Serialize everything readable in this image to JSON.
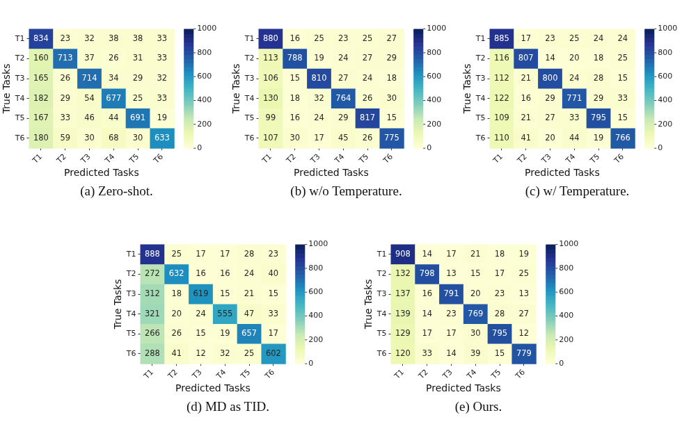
{
  "chart_data": [
    {
      "type": "heatmap",
      "categories": [
        "T1",
        "T2",
        "T3",
        "T4",
        "T5",
        "T6"
      ],
      "y_categories": [
        "T1",
        "T2",
        "T3",
        "T4",
        "T5",
        "T6"
      ],
      "xlabel": "Predicted Tasks",
      "ylabel": "True Tasks",
      "clim": [
        0,
        1000
      ],
      "cticks": [
        0,
        200,
        400,
        600,
        800,
        1000
      ],
      "data_labels": true,
      "annotations": [
        "(a) Zero-shot."
      ],
      "cells": [
        [
          834,
          23,
          32,
          38,
          38,
          33
        ],
        [
          160,
          713,
          37,
          26,
          31,
          33
        ],
        [
          165,
          26,
          714,
          34,
          29,
          32
        ],
        [
          182,
          29,
          54,
          677,
          25,
          33
        ],
        [
          167,
          33,
          46,
          44,
          691,
          19
        ],
        [
          180,
          59,
          30,
          68,
          30,
          633
        ]
      ]
    },
    {
      "type": "heatmap",
      "categories": [
        "T1",
        "T2",
        "T3",
        "T4",
        "T5",
        "T6"
      ],
      "y_categories": [
        "T1",
        "T2",
        "T3",
        "T4",
        "T5",
        "T6"
      ],
      "xlabel": "Predicted Tasks",
      "ylabel": "True Tasks",
      "clim": [
        0,
        1000
      ],
      "cticks": [
        0,
        200,
        400,
        600,
        800,
        1000
      ],
      "data_labels": true,
      "annotations": [
        "(b) w/o Temperature."
      ],
      "cells": [
        [
          880,
          16,
          25,
          23,
          25,
          27
        ],
        [
          113,
          788,
          19,
          24,
          27,
          29
        ],
        [
          106,
          15,
          810,
          27,
          24,
          18
        ],
        [
          130,
          18,
          32,
          764,
          26,
          30
        ],
        [
          99,
          16,
          24,
          29,
          817,
          15
        ],
        [
          107,
          30,
          17,
          45,
          26,
          775
        ]
      ]
    },
    {
      "type": "heatmap",
      "categories": [
        "T1",
        "T2",
        "T3",
        "T4",
        "T5",
        "T6"
      ],
      "y_categories": [
        "T1",
        "T2",
        "T3",
        "T4",
        "T5",
        "T6"
      ],
      "xlabel": "Predicted Tasks",
      "ylabel": "True Tasks",
      "clim": [
        0,
        1000
      ],
      "cticks": [
        0,
        200,
        400,
        600,
        800,
        1000
      ],
      "data_labels": true,
      "annotations": [
        "(c) w/ Temperature."
      ],
      "cells": [
        [
          885,
          17,
          23,
          25,
          24,
          24
        ],
        [
          116,
          807,
          14,
          20,
          18,
          25
        ],
        [
          112,
          21,
          800,
          24,
          28,
          15
        ],
        [
          122,
          16,
          29,
          771,
          29,
          33
        ],
        [
          109,
          21,
          27,
          33,
          795,
          15
        ],
        [
          110,
          41,
          20,
          44,
          19,
          766
        ]
      ]
    },
    {
      "type": "heatmap",
      "categories": [
        "T1",
        "T2",
        "T3",
        "T4",
        "T5",
        "T6"
      ],
      "y_categories": [
        "T1",
        "T2",
        "T3",
        "T4",
        "T5",
        "T6"
      ],
      "xlabel": "Predicted Tasks",
      "ylabel": "True Tasks",
      "clim": [
        0,
        1000
      ],
      "cticks": [
        0,
        200,
        400,
        600,
        800,
        1000
      ],
      "data_labels": true,
      "annotations": [
        "(d) MD as TID."
      ],
      "cells": [
        [
          888,
          25,
          17,
          17,
          28,
          23
        ],
        [
          272,
          632,
          16,
          16,
          24,
          40
        ],
        [
          312,
          18,
          619,
          15,
          21,
          15
        ],
        [
          321,
          20,
          24,
          555,
          47,
          33
        ],
        [
          266,
          26,
          15,
          19,
          657,
          17
        ],
        [
          288,
          41,
          12,
          32,
          25,
          602
        ]
      ]
    },
    {
      "type": "heatmap",
      "categories": [
        "T1",
        "T2",
        "T3",
        "T4",
        "T5",
        "T6"
      ],
      "y_categories": [
        "T1",
        "T2",
        "T3",
        "T4",
        "T5",
        "T6"
      ],
      "xlabel": "Predicted Tasks",
      "ylabel": "True Tasks",
      "clim": [
        0,
        1000
      ],
      "cticks": [
        0,
        200,
        400,
        600,
        800,
        1000
      ],
      "data_labels": true,
      "annotations": [
        "(e) Ours."
      ],
      "cells": [
        [
          908,
          14,
          17,
          21,
          18,
          19
        ],
        [
          132,
          798,
          13,
          15,
          17,
          25
        ],
        [
          137,
          16,
          791,
          20,
          23,
          13
        ],
        [
          139,
          14,
          23,
          769,
          28,
          27
        ],
        [
          129,
          17,
          17,
          30,
          795,
          12
        ],
        [
          120,
          33,
          14,
          39,
          15,
          779
        ]
      ]
    }
  ]
}
